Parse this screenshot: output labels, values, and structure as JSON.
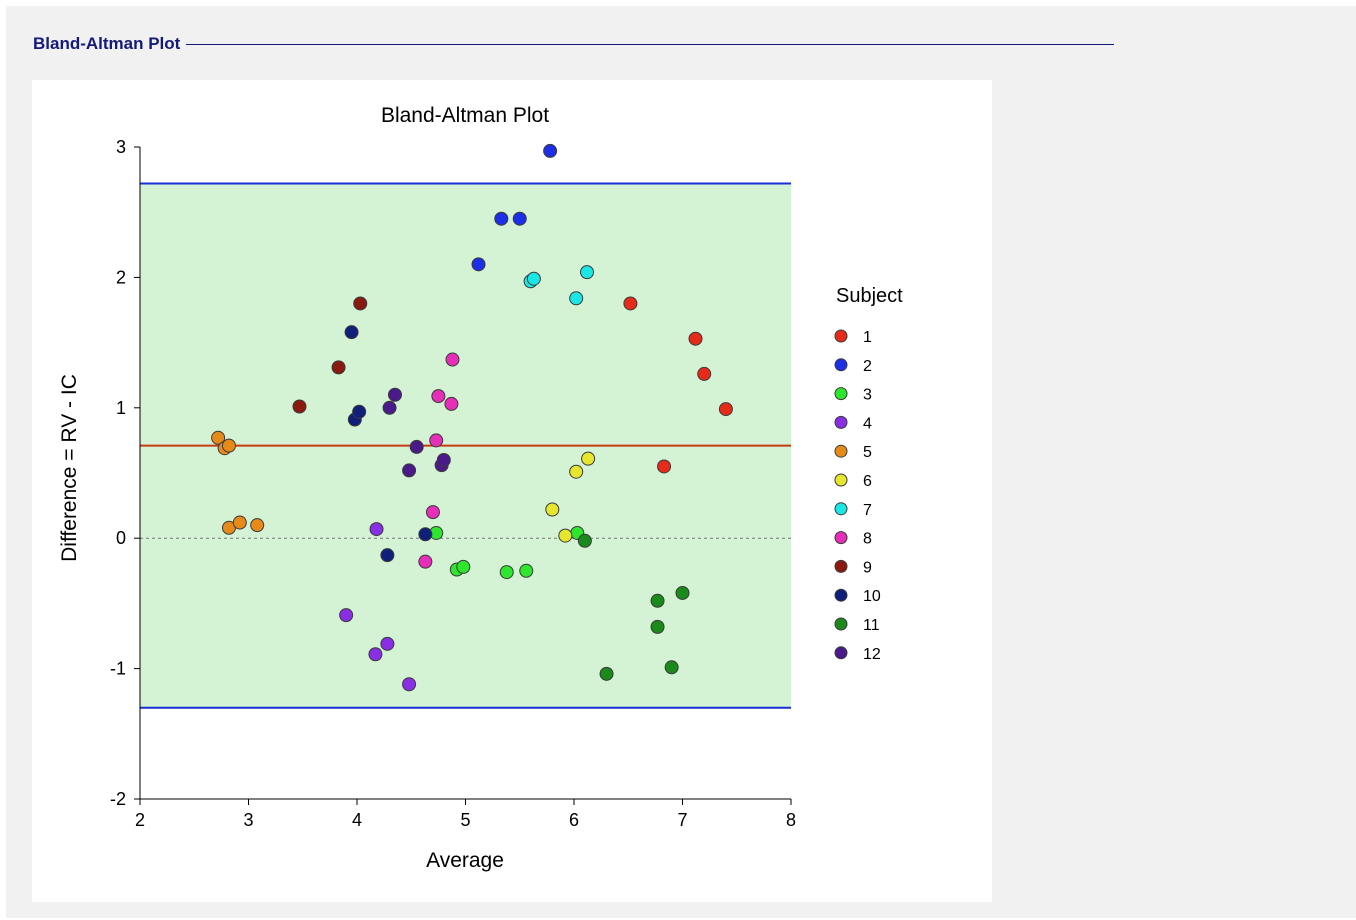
{
  "section": {
    "title": "Bland-Altman Plot"
  },
  "chart_data": {
    "type": "scatter",
    "title": "Bland-Altman Plot",
    "xlabel": "Average",
    "ylabel": "Difference = RV - IC",
    "xlim": [
      2,
      8
    ],
    "ylim": [
      -2,
      3
    ],
    "x_ticks": [
      "2",
      "3",
      "4",
      "5",
      "6",
      "7",
      "8"
    ],
    "y_ticks": [
      "-2",
      "-1",
      "0",
      "1",
      "2",
      "3"
    ],
    "legend_title": "Subject",
    "legend_position": "right",
    "grid": false,
    "reference_lines": {
      "mean_difference": 0.71,
      "upper_limit": 2.72,
      "lower_limit": -1.3,
      "zero": 0
    },
    "colors": {
      "band_fill": "#d4f2d4",
      "limit_line": "#1b2fd6",
      "mean_line": "#c83a12",
      "zero_line": "#777777"
    },
    "series": [
      {
        "name": "1",
        "color": "#e62b1a",
        "points": [
          [
            6.52,
            1.8
          ],
          [
            6.83,
            0.55
          ],
          [
            7.12,
            1.53
          ],
          [
            7.2,
            1.26
          ],
          [
            7.4,
            0.99
          ]
        ]
      },
      {
        "name": "2",
        "color": "#1d2fe6",
        "points": [
          [
            5.12,
            2.1
          ],
          [
            5.33,
            2.45
          ],
          [
            5.5,
            2.45
          ],
          [
            5.78,
            2.97
          ]
        ]
      },
      {
        "name": "3",
        "color": "#2ee62e",
        "points": [
          [
            4.73,
            0.04
          ],
          [
            4.92,
            -0.24
          ],
          [
            4.98,
            -0.22
          ],
          [
            5.38,
            -0.26
          ],
          [
            5.56,
            -0.25
          ],
          [
            6.03,
            0.04
          ]
        ]
      },
      {
        "name": "4",
        "color": "#8a2ee6",
        "points": [
          [
            3.9,
            -0.59
          ],
          [
            4.17,
            -0.89
          ],
          [
            4.18,
            0.07
          ],
          [
            4.28,
            -0.81
          ],
          [
            4.48,
            -1.12
          ]
        ]
      },
      {
        "name": "5",
        "color": "#e68a1a",
        "points": [
          [
            2.72,
            0.77
          ],
          [
            2.78,
            0.69
          ],
          [
            2.82,
            0.71
          ],
          [
            2.82,
            0.08
          ],
          [
            2.92,
            0.12
          ],
          [
            3.08,
            0.1
          ]
        ]
      },
      {
        "name": "6",
        "color": "#e6e62e",
        "points": [
          [
            5.8,
            0.22
          ],
          [
            5.92,
            0.02
          ],
          [
            6.02,
            0.51
          ],
          [
            6.13,
            0.61
          ]
        ]
      },
      {
        "name": "7",
        "color": "#1ae6e6",
        "points": [
          [
            5.6,
            1.97
          ],
          [
            5.63,
            1.99
          ],
          [
            6.02,
            1.84
          ],
          [
            6.12,
            2.04
          ]
        ]
      },
      {
        "name": "8",
        "color": "#e62eb8",
        "points": [
          [
            4.63,
            -0.18
          ],
          [
            4.7,
            0.2
          ],
          [
            4.73,
            0.75
          ],
          [
            4.75,
            1.09
          ],
          [
            4.87,
            1.03
          ],
          [
            4.88,
            1.37
          ]
        ]
      },
      {
        "name": "9",
        "color": "#8a1a10",
        "points": [
          [
            3.47,
            1.01
          ],
          [
            3.83,
            1.31
          ],
          [
            4.03,
            1.8
          ]
        ]
      },
      {
        "name": "10",
        "color": "#10207a",
        "points": [
          [
            3.95,
            1.58
          ],
          [
            3.98,
            0.91
          ],
          [
            4.02,
            0.97
          ],
          [
            4.28,
            -0.13
          ],
          [
            4.63,
            0.03
          ]
        ]
      },
      {
        "name": "11",
        "color": "#1a8a1a",
        "points": [
          [
            6.1,
            -0.02
          ],
          [
            6.3,
            -1.04
          ],
          [
            6.77,
            -0.48
          ],
          [
            6.77,
            -0.68
          ],
          [
            6.9,
            -0.99
          ],
          [
            7.0,
            -0.42
          ]
        ]
      },
      {
        "name": "12",
        "color": "#4a1a8a",
        "points": [
          [
            4.3,
            1.0
          ],
          [
            4.35,
            1.1
          ],
          [
            4.48,
            0.52
          ],
          [
            4.55,
            0.7
          ],
          [
            4.78,
            0.56
          ],
          [
            4.8,
            0.6
          ]
        ]
      }
    ]
  }
}
